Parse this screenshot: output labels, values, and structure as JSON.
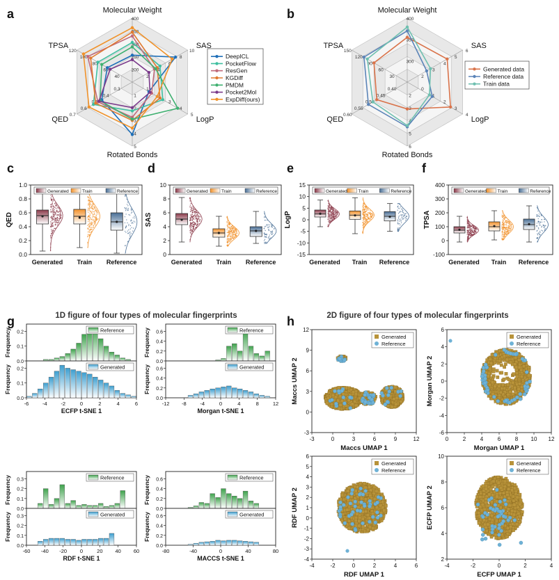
{
  "panel_letters": [
    "a",
    "b",
    "c",
    "d",
    "e",
    "f",
    "g",
    "h"
  ],
  "colors": {
    "generated": "#8b3a4a",
    "train": "#f2932e",
    "reference": "#4a6f96",
    "green": "#3fa34d",
    "blue": "#3d9fd0",
    "gold": "#b8933a",
    "ref_dot": "#6fb2d6"
  },
  "chart_data": [
    {
      "panel": "a",
      "type": "radar",
      "axes": [
        "Molecular Weight",
        "SAS",
        "LogP",
        "Rotated Bonds",
        "QED",
        "TPSA"
      ],
      "axis_ticks": [
        [
          "400",
          "350",
          "300",
          "250",
          "200"
        ],
        [
          "10",
          "8",
          "6",
          "4",
          "2"
        ],
        [
          "5",
          "4",
          "3",
          "2",
          "1"
        ],
        [
          "5",
          "4",
          "3",
          "2",
          "1"
        ],
        [
          "0.7",
          "0.6",
          "0.5",
          "0.4",
          "0.3"
        ],
        [
          "120",
          "100",
          "80",
          "60",
          "40"
        ]
      ],
      "series": [
        {
          "name": "DeepICL",
          "color": "#1f6fb8",
          "values": [
            0.42,
            0.78,
            0.3,
            0.82,
            0.55,
            0.45
          ]
        },
        {
          "name": "PocketFlow",
          "color": "#3fbfa0",
          "values": [
            0.62,
            0.5,
            0.55,
            0.45,
            0.7,
            0.62
          ]
        },
        {
          "name": "ResGen",
          "color": "#c06a7a",
          "values": [
            0.72,
            0.4,
            0.35,
            0.55,
            0.62,
            0.8
          ]
        },
        {
          "name": "KGDiff",
          "color": "#e07a30",
          "values": [
            0.78,
            0.45,
            0.5,
            0.6,
            0.66,
            0.75
          ]
        },
        {
          "name": "PMDM",
          "color": "#3fb070",
          "values": [
            0.55,
            0.42,
            0.82,
            0.58,
            0.58,
            0.55
          ]
        },
        {
          "name": "Pocket2Mol",
          "color": "#7a3a8a",
          "values": [
            0.35,
            0.3,
            0.32,
            0.4,
            0.6,
            0.4
          ]
        },
        {
          "name": "ExpDiff(ours)",
          "color": "#f0922a",
          "values": [
            0.85,
            0.72,
            0.45,
            0.72,
            0.78,
            0.88
          ]
        }
      ]
    },
    {
      "panel": "b",
      "type": "radar",
      "axes": [
        "Molecular Weight",
        "SAS",
        "LogP",
        "Rotated Bonds",
        "QED",
        "TPSA"
      ],
      "axis_ticks": [
        [
          "400",
          "350",
          "300"
        ],
        [
          "6",
          "5",
          "4",
          "3",
          "2"
        ],
        [
          "4",
          "3",
          "2",
          "1",
          "0"
        ],
        [
          "6",
          "5",
          "4",
          "3",
          "2"
        ],
        [
          "0.60",
          "0.55",
          "0.50",
          "0.45",
          "0.40"
        ],
        [
          "150",
          "120",
          "90",
          "60",
          "30"
        ]
      ],
      "series": [
        {
          "name": "Generated data",
          "color": "#d9734a",
          "values": [
            0.7,
            0.72,
            0.78,
            0.42,
            0.55,
            0.6
          ]
        },
        {
          "name": "Reference data",
          "color": "#5b84b8",
          "values": [
            0.8,
            0.35,
            0.45,
            0.7,
            0.7,
            0.78
          ]
        },
        {
          "name": "Train data",
          "color": "#6fc0b0",
          "values": [
            0.86,
            0.42,
            0.4,
            0.68,
            0.62,
            0.72
          ]
        }
      ]
    },
    {
      "panel": "c",
      "type": "box+violin",
      "ylabel": "QED",
      "ylim": [
        0,
        1
      ],
      "yticks": [
        "0.0",
        "0.2",
        "0.4",
        "0.6",
        "0.8",
        "1.0"
      ],
      "categories": [
        "Generated",
        "Train",
        "Reference"
      ],
      "legend": [
        "Generated",
        "Train",
        "Reference"
      ],
      "boxes": [
        {
          "min": 0.05,
          "q1": 0.44,
          "median": 0.56,
          "q3": 0.64,
          "max": 0.95,
          "mean": 0.55
        },
        {
          "min": 0.1,
          "q1": 0.44,
          "median": 0.55,
          "q3": 0.65,
          "max": 0.95,
          "mean": 0.53
        },
        {
          "min": 0.02,
          "q1": 0.35,
          "median": 0.47,
          "q3": 0.6,
          "max": 0.88,
          "mean": 0.47
        }
      ]
    },
    {
      "panel": "d",
      "type": "box+violin",
      "ylabel": "SAS",
      "ylim": [
        0,
        10
      ],
      "yticks": [
        "0",
        "2",
        "4",
        "6",
        "8",
        "10"
      ],
      "categories": [
        "Generated",
        "Train",
        "Reference"
      ],
      "legend": [
        "Generated",
        "Train",
        "Reference"
      ],
      "boxes": [
        {
          "min": 1.8,
          "q1": 4.3,
          "median": 5.1,
          "q3": 5.9,
          "max": 8.2,
          "mean": 5.0
        },
        {
          "min": 1.2,
          "q1": 2.5,
          "median": 3.1,
          "q3": 3.7,
          "max": 5.5,
          "mean": 3.1
        },
        {
          "min": 1.6,
          "q1": 2.6,
          "median": 3.4,
          "q3": 4.0,
          "max": 6.2,
          "mean": 3.4
        }
      ]
    },
    {
      "panel": "e",
      "type": "box+violin",
      "ylabel": "LogP",
      "ylim": [
        -15,
        15
      ],
      "yticks": [
        "-15",
        "-10",
        "-5",
        "0",
        "5",
        "10",
        "15"
      ],
      "categories": [
        "Generated",
        "Train",
        "Reference"
      ],
      "legend": [
        "Generated",
        "Train",
        "Reference"
      ],
      "boxes": [
        {
          "min": -3,
          "q1": 1.2,
          "median": 2.5,
          "q3": 4.2,
          "max": 8.5,
          "mean": 2.6
        },
        {
          "min": -6,
          "q1": 0.2,
          "median": 2.0,
          "q3": 3.8,
          "max": 9.5,
          "mean": 1.9
        },
        {
          "min": -5,
          "q1": -0.5,
          "median": 1.5,
          "q3": 3.5,
          "max": 7,
          "mean": 1.3
        }
      ]
    },
    {
      "panel": "f",
      "type": "box+violin",
      "ylabel": "TPSA",
      "ylim": [
        -100,
        400
      ],
      "yticks": [
        "-100",
        "0",
        "100",
        "200",
        "300",
        "400"
      ],
      "categories": [
        "Generated",
        "Train",
        "Reference"
      ],
      "legend": [
        "Generated",
        "Train",
        "Reference"
      ],
      "boxes": [
        {
          "min": -10,
          "q1": 55,
          "median": 75,
          "q3": 100,
          "max": 175,
          "mean": 78
        },
        {
          "min": 5,
          "q1": 70,
          "median": 100,
          "q3": 135,
          "max": 215,
          "mean": 104
        },
        {
          "min": -10,
          "q1": 80,
          "median": 115,
          "q3": 155,
          "max": 250,
          "mean": 118
        }
      ]
    },
    {
      "panel": "g",
      "type": "histogram",
      "title": "1D figure of four types of molecular fingerprints",
      "subplots": [
        {
          "xlabel": "ECFP t-SNE 1",
          "xticks": [
            "-6",
            "-4",
            "-2",
            "0",
            "2",
            "4",
            "6"
          ],
          "xlim": [
            -6,
            6
          ],
          "ref": [
            0,
            0,
            0,
            0.01,
            0.01,
            0.02,
            0.03,
            0.05,
            0.08,
            0.12,
            0.18,
            0.2,
            0.22,
            0.15,
            0.1,
            0.06,
            0.04,
            0.02,
            0.01,
            0
          ],
          "gen": [
            0.01,
            0.03,
            0.06,
            0.1,
            0.14,
            0.18,
            0.22,
            0.2,
            0.19,
            0.18,
            0.17,
            0.16,
            0.14,
            0.12,
            0.1,
            0.08,
            0.05,
            0.03,
            0.02,
            0.01
          ],
          "yticks_ref": [
            "0.0",
            "0.1",
            "0.2"
          ],
          "yticks_gen": [
            "0.0",
            "0.1",
            "0.2"
          ]
        },
        {
          "xlabel": "Morgan t-SNE 1",
          "xticks": [
            "-12",
            "-8",
            "-4",
            "0",
            "4",
            "8",
            "12"
          ],
          "xlim": [
            -12,
            12
          ],
          "ref": [
            0,
            0,
            0,
            0,
            0,
            0,
            0,
            0,
            0,
            0.02,
            0.05,
            0.3,
            0.35,
            0.2,
            0.6,
            0.3,
            0.15,
            0.1,
            0.2,
            0
          ],
          "gen": [
            0,
            0,
            0,
            0,
            0.05,
            0.08,
            0.12,
            0.15,
            0.18,
            0.2,
            0.22,
            0.24,
            0.2,
            0.18,
            0.15,
            0.12,
            0.08,
            0.05,
            0.03,
            0
          ],
          "yticks_ref": [
            "0.0",
            "0.2",
            "0.4",
            "0.6"
          ],
          "yticks_gen": [
            "0.0",
            "0.2",
            "0.4",
            "0.6"
          ]
        },
        {
          "xlabel": "RDF t-SNE 1",
          "xticks": [
            "-60",
            "-40",
            "-20",
            "0",
            "20",
            "40",
            "60"
          ],
          "xlim": [
            -60,
            60
          ],
          "ref": [
            0,
            0,
            0.05,
            0.2,
            0.04,
            0.1,
            0.24,
            0.05,
            0.08,
            0.03,
            0.04,
            0.03,
            0.03,
            0.05,
            0.02,
            0.03,
            0.05,
            0.18,
            0,
            0
          ],
          "gen": [
            0,
            0,
            0.04,
            0.06,
            0.07,
            0.07,
            0.07,
            0.06,
            0.06,
            0.05,
            0.06,
            0.06,
            0.06,
            0.07,
            0.07,
            0.12,
            0,
            0,
            0,
            0
          ],
          "yticks_ref": [
            "0.0",
            "0.1",
            "0.2",
            "0.3"
          ],
          "yticks_gen": [
            "0.0",
            "0.1",
            "0.2",
            "0.3"
          ]
        },
        {
          "xlabel": "MACCS t-SNE 1",
          "xticks": [
            "-80",
            "-40",
            "0",
            "40",
            "80"
          ],
          "xlim": [
            -80,
            80
          ],
          "ref": [
            0,
            0,
            0,
            0,
            0.02,
            0.05,
            0.12,
            0.1,
            0.3,
            0.22,
            0.4,
            0.3,
            0.25,
            0.2,
            0.35,
            0.15,
            0.1,
            0,
            0,
            0
          ],
          "gen": [
            0,
            0,
            0,
            0,
            0.02,
            0.04,
            0.06,
            0.07,
            0.08,
            0.1,
            0.09,
            0.1,
            0.1,
            0.09,
            0.08,
            0.07,
            0.06,
            0,
            0,
            0
          ],
          "yticks_ref": [
            "0.0",
            "0.2",
            "0.4",
            "0.6"
          ],
          "yticks_gen": [
            "0.0",
            "0.2",
            "0.4",
            "0.6"
          ]
        }
      ],
      "legend_ref": "Reference",
      "legend_gen": "Generated",
      "ylabel": "Frequency"
    },
    {
      "panel": "h",
      "type": "scatter",
      "title": "2D figure of four types of molecular fingerprints",
      "legend": [
        "Generated",
        "Reference"
      ],
      "subplots": [
        {
          "xlabel": "Maccs UMAP 1",
          "ylabel": "Maccs UMAP 2",
          "xlim": [
            -3,
            12
          ],
          "ylim": [
            -3,
            12
          ],
          "xticks": [
            "-3",
            "0",
            "3",
            "6",
            "9",
            "12"
          ],
          "yticks": [
            "-3",
            "0",
            "3",
            "6",
            "9",
            "12"
          ]
        },
        {
          "xlabel": "Morgan UMAP 1",
          "ylabel": "Morgan UMAP 2",
          "xlim": [
            0,
            12
          ],
          "ylim": [
            -6,
            6
          ],
          "xticks": [
            "0",
            "2",
            "4",
            "6",
            "8",
            "10",
            "12"
          ],
          "yticks": [
            "-6",
            "-4",
            "-2",
            "0",
            "2",
            "4",
            "6"
          ]
        },
        {
          "xlabel": "RDF UMAP 1",
          "ylabel": "RDF UMAP 2",
          "xlim": [
            -4,
            6
          ],
          "ylim": [
            -4,
            6
          ],
          "xticks": [
            "-4",
            "-2",
            "0",
            "2",
            "4",
            "6"
          ],
          "yticks": [
            "-4",
            "-3",
            "-2",
            "-1",
            "0",
            "1",
            "2",
            "3",
            "4",
            "5",
            "6"
          ]
        },
        {
          "xlabel": "ECFP UMAP 1",
          "ylabel": "ECFP UMAP 2",
          "xlim": [
            -4,
            4
          ],
          "ylim": [
            2,
            10
          ],
          "xticks": [
            "-4",
            "-2",
            "0",
            "2",
            "4"
          ],
          "yticks": [
            "2",
            "4",
            "6",
            "8",
            "10"
          ]
        }
      ]
    }
  ]
}
